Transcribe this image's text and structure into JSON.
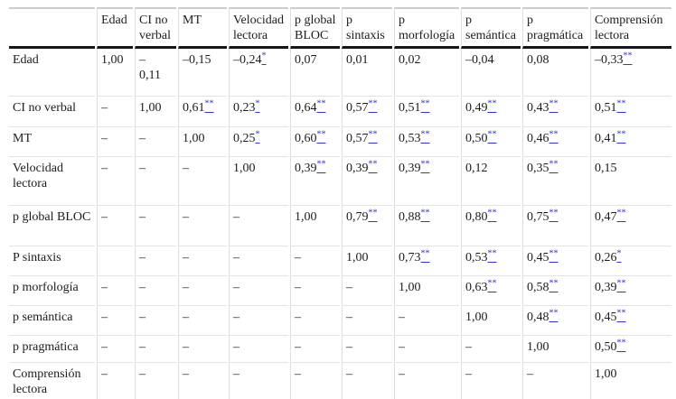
{
  "table": {
    "corner_label": "",
    "columns": [
      "Edad",
      "CI no verbal",
      "MT",
      "Velocidad lectora",
      "p global BLOC",
      "p sintaxis",
      "p morfología",
      "p semántica",
      "p pragmática",
      "Comprensión lectora"
    ],
    "rows": [
      {
        "label": "Edad",
        "cells": [
          "1,00",
          "–\n0,11",
          "–0,15",
          "–0,24*",
          "0,07",
          "0,01",
          "0,02",
          "–0,04",
          "0,08",
          "–0,33**"
        ]
      },
      {
        "label": "CI no verbal",
        "cells": [
          "–",
          "1,00",
          "0,61**",
          "0,23*",
          "0,64**",
          "0,57**",
          "0,51**",
          "0,49**",
          "0,43**",
          "0,51**"
        ]
      },
      {
        "label": "MT",
        "cells": [
          "–",
          "–",
          "1,00",
          "0,25*",
          "0,60**",
          "0,57**",
          "0,53**",
          "0,50**",
          "0,46**",
          "0,41**"
        ]
      },
      {
        "label": "Velocidad lectora",
        "cells": [
          "–",
          "–",
          "–",
          "1,00",
          "0,39**",
          "0,39**",
          "0,39**",
          "0,12",
          "0,35**",
          "0,15"
        ]
      },
      {
        "label": "p global BLOC",
        "cells": [
          "–",
          "–",
          "–",
          "–",
          "1,00",
          "0,79**",
          "0,88**",
          "0,80**",
          "0,75**",
          "0,47**"
        ]
      },
      {
        "label": "P sintaxis",
        "cells": [
          "",
          "–",
          "–",
          "–",
          "–",
          "1,00",
          "0,73**",
          "0,53**",
          "0,45**",
          "0,26*"
        ]
      },
      {
        "label": "p morfología",
        "cells": [
          "–",
          "–",
          "–",
          "–",
          "–",
          "–",
          "1,00",
          "0,63**",
          "0,58**",
          "0,39**"
        ]
      },
      {
        "label": "p semántica",
        "cells": [
          "–",
          "–",
          "–",
          "–",
          "–",
          "–",
          "–",
          "1,00",
          "0,48**",
          "0,45**"
        ]
      },
      {
        "label": "p pragmática",
        "cells": [
          "–",
          "–",
          "–",
          "–",
          "–",
          "–",
          "–",
          "–",
          "1,00",
          "0,50**"
        ]
      },
      {
        "label": "Comprensión lectora",
        "cells": [
          "–",
          "–",
          "–",
          "–",
          "–",
          "–",
          "–",
          "–",
          "–",
          "1,00"
        ]
      }
    ],
    "colors": {
      "significance_link": "#3535cd",
      "rule_black": "#161616",
      "grid_gray": "#dedede",
      "text": "#1c1c1c"
    }
  }
}
